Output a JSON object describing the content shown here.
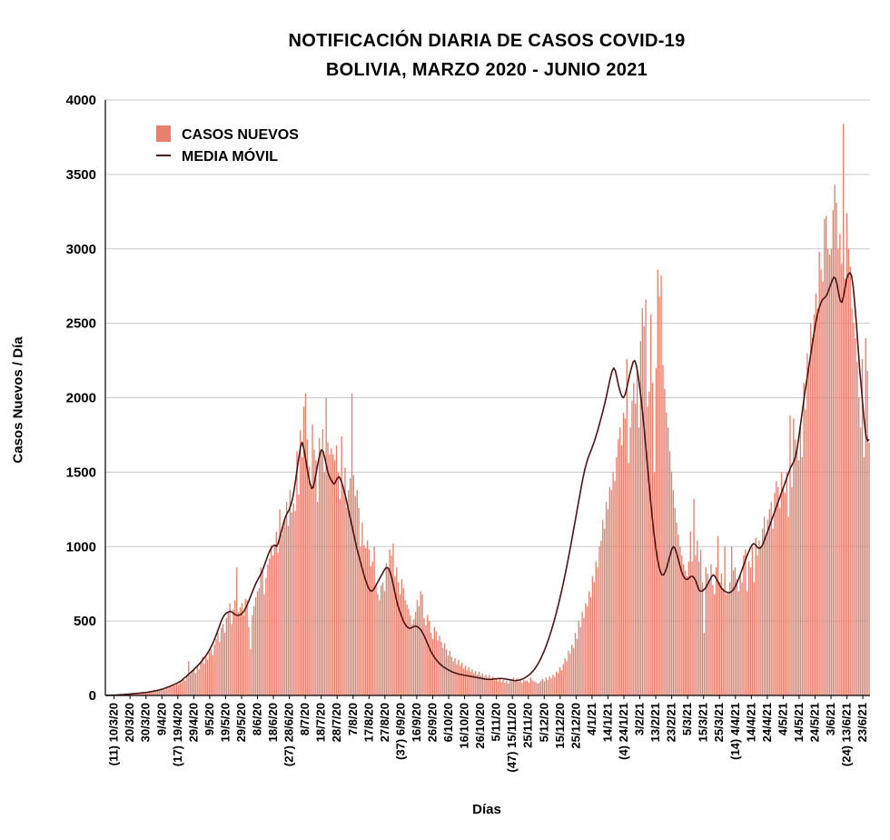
{
  "chart_data": {
    "type": "bar",
    "title": "NOTIFICACIÓN DIARIA DE CASOS COVID-19",
    "subtitle": "BOLIVIA,  MARZO 2020 - JUNIO 2021",
    "xlabel": "Días",
    "ylabel": "Casos Nuevos / Día",
    "ylim": [
      0,
      4000
    ],
    "yticks": [
      0,
      500,
      1000,
      1500,
      2000,
      2500,
      3000,
      3500,
      4000
    ],
    "grid": "horizontal",
    "legend_position": "top-left",
    "x_start": "10/3/20",
    "x_end": "26/6/21",
    "xticks": [
      "(11) 10/3/20",
      "20/3/20",
      "30/3/20",
      "9/4/20",
      "(17) 19/4/20",
      "29/4/20",
      "9/5/20",
      "19/5/20",
      "29/5/20",
      "8/6/20",
      "18/6/20",
      "(27) 28/6/20",
      "8/7/20",
      "18/7/20",
      "28/7/20",
      "7/8/20",
      "17/8/20",
      "27/8/20",
      "(37) 6/9/20",
      "16/9/20",
      "26/9/20",
      "6/10/20",
      "16/10/20",
      "26/10/20",
      "5/11/20",
      "(47) 15/11/20",
      "25/11/20",
      "5/12/20",
      "15/12/20",
      "25/12/20",
      "4/1/21",
      "14/1/21",
      "(4) 24/1/21",
      "3/2/21",
      "13/2/21",
      "23/2/21",
      "5/3/21",
      "15/3/21",
      "25/3/21",
      "(14) 4/4/21",
      "14/4/21",
      "24/4/21",
      "4/5/21",
      "14/5/21",
      "24/5/21",
      "3/6/21",
      "(24) 13/6/21",
      "23/6/21"
    ],
    "series": [
      {
        "name": "CASOS NUEVOS",
        "type": "bar",
        "color": "#e8806f",
        "values": [
          1,
          0,
          1,
          2,
          3,
          2,
          4,
          3,
          5,
          6,
          5,
          8,
          7,
          10,
          12,
          9,
          14,
          11,
          15,
          17,
          13,
          20,
          18,
          24,
          16,
          22,
          30,
          25,
          34,
          28,
          36,
          31,
          40,
          45,
          38,
          52,
          47,
          60,
          55,
          70,
          65,
          80,
          74,
          95,
          88,
          110,
          100,
          125,
          230,
          140,
          160,
          185,
          150,
          200,
          175,
          230,
          260,
          215,
          270,
          240,
          290,
          310,
          270,
          340,
          380,
          420,
          360,
          455,
          480,
          420,
          520,
          560,
          620,
          480,
          580,
          640,
          860,
          560,
          590,
          620,
          540,
          650,
          640,
          460,
          310,
          540,
          600,
          660,
          700,
          720,
          860,
          840,
          680,
          790,
          880,
          920,
          1010,
          940,
          1000,
          1100,
          960,
          1250,
          1080,
          1150,
          1200,
          1300,
          1140,
          1380,
          1230,
          1290,
          1240,
          1640,
          1350,
          1780,
          1600,
          1940,
          2030,
          1720,
          1540,
          1420,
          1820,
          1650,
          1580,
          1300,
          1730,
          1640,
          1790,
          1500,
          2000,
          1700,
          1620,
          1660,
          1620,
          1580,
          1680,
          1500,
          1320,
          1740,
          1400,
          1530,
          1260,
          1380,
          1460,
          2030,
          1480,
          1340,
          1380,
          1260,
          1000,
          1160,
          1010,
          990,
          1040,
          980,
          870,
          900,
          1000,
          750,
          680,
          640,
          740,
          760,
          700,
          890,
          860,
          980,
          940,
          1020,
          800,
          860,
          760,
          680,
          780,
          720,
          640,
          610,
          580,
          540,
          480,
          510,
          560,
          640,
          600,
          700,
          680,
          520,
          470,
          540,
          500,
          420,
          380,
          460,
          430,
          370,
          400,
          360,
          320,
          350,
          310,
          270,
          300,
          260,
          230,
          250,
          210,
          240,
          200,
          220,
          180,
          200,
          170,
          190,
          160,
          175,
          150,
          165,
          140,
          160,
          135,
          150,
          125,
          140,
          120,
          135,
          110,
          125,
          100,
          115,
          95,
          110,
          90,
          105,
          85,
          100,
          80,
          110,
          95,
          120,
          100,
          115,
          90,
          110,
          85,
          105,
          95,
          100,
          85,
          120,
          100,
          95,
          90,
          80,
          85,
          100,
          110,
          95,
          120,
          105,
          130,
          115,
          140,
          125,
          160,
          150,
          190,
          170,
          210,
          250,
          230,
          300,
          280,
          340,
          320,
          420,
          380,
          500,
          460,
          560,
          520,
          620,
          600,
          700,
          660,
          800,
          760,
          900,
          860,
          1000,
          1040,
          1180,
          1120,
          1300,
          1250,
          1400,
          1380,
          1500,
          1440,
          1600,
          1720,
          1800,
          1680,
          1900,
          1860,
          2260,
          1560,
          1800,
          1980,
          2100,
          1960,
          2200,
          1800,
          2380,
          2600,
          2480,
          2660,
          1940,
          2040,
          2560,
          2100,
          1500,
          2200,
          2860,
          2680,
          2820,
          2220,
          2060,
          1900,
          1800,
          1640,
          1500,
          1380,
          1260,
          1160,
          1080,
          1000,
          940,
          880,
          840,
          800,
          900,
          1100,
          900,
          1320,
          940,
          1040,
          900,
          980,
          760,
          420,
          860,
          820,
          760,
          880,
          740,
          680,
          860,
          1070,
          760,
          820,
          720,
          1000,
          680,
          700,
          760,
          1000,
          840,
          860,
          780,
          700,
          820,
          760,
          940,
          980,
          700,
          900,
          860,
          1000,
          760,
          1060,
          940,
          1040,
          1000,
          1120,
          1200,
          1060,
          1180,
          1250,
          1300,
          1120,
          1360,
          1440,
          1400,
          1260,
          1500,
          1400,
          1360,
          1500,
          1200,
          1880,
          1400,
          1860,
          1720,
          1640,
          1580,
          1800,
          1600,
          2100,
          1920,
          2300,
          2200,
          2500,
          2400,
          2560,
          2700,
          2600,
          2980,
          2860,
          2780,
          3200,
          3220,
          3000,
          2960,
          3000,
          3260,
          3430,
          3310,
          3000,
          3100,
          2900,
          3840,
          2800,
          3240,
          3000,
          2880,
          2600,
          2500,
          2400,
          2240,
          2000,
          1800,
          2260,
          1600,
          2400,
          2180,
          1700
        ]
      },
      {
        "name": "MEDIA MÓVIL",
        "type": "line",
        "color": "#4a1515",
        "values": [
          1,
          1,
          1,
          2,
          2,
          2,
          3,
          3,
          4,
          5,
          5,
          6,
          7,
          8,
          9,
          10,
          11,
          12,
          13,
          14,
          15,
          16,
          17,
          18,
          19,
          20,
          22,
          24,
          26,
          28,
          30,
          32,
          34,
          37,
          40,
          43,
          46,
          50,
          54,
          58,
          62,
          67,
          72,
          77,
          82,
          88,
          94,
          100,
          112,
          120,
          128,
          140,
          148,
          158,
          168,
          178,
          190,
          200,
          212,
          224,
          238,
          252,
          266,
          282,
          300,
          320,
          342,
          366,
          392,
          420,
          450,
          480,
          510,
          530,
          545,
          555,
          560,
          565,
          562,
          555,
          545,
          540,
          538,
          540,
          545,
          555,
          570,
          590,
          615,
          640,
          668,
          695,
          722,
          748,
          770,
          790,
          810,
          830,
          860,
          890,
          920,
          950,
          975,
          995,
          1005,
          1010,
          1000,
          1020,
          1060,
          1100,
          1140,
          1180,
          1210,
          1230,
          1250,
          1280,
          1320,
          1380,
          1450,
          1530,
          1600,
          1670,
          1700,
          1660,
          1600,
          1530,
          1470,
          1420,
          1390,
          1400,
          1450,
          1510,
          1570,
          1620,
          1650,
          1640,
          1600,
          1550,
          1500,
          1470,
          1450,
          1430,
          1420,
          1440,
          1460,
          1470,
          1450,
          1420,
          1380,
          1340,
          1290,
          1240,
          1190,
          1140,
          1090,
          1040,
          990,
          950,
          910,
          870,
          830,
          790,
          760,
          730,
          710,
          700,
          705,
          720,
          740,
          760,
          780,
          800,
          820,
          840,
          855,
          860,
          850,
          820,
          780,
          730,
          680,
          630,
          590,
          560,
          530,
          500,
          480,
          465,
          455,
          450,
          455,
          460,
          465,
          465,
          460,
          450,
          440,
          420,
          400,
          375,
          350,
          325,
          300,
          280,
          262,
          246,
          232,
          220,
          210,
          200,
          192,
          185,
          178,
          172,
          166,
          160,
          156,
          152,
          148,
          145,
          142,
          140,
          138,
          136,
          134,
          132,
          130,
          128,
          126,
          124,
          122,
          120,
          118,
          116,
          114,
          112,
          110,
          109,
          108,
          108,
          109,
          110,
          111,
          112,
          113,
          114,
          114,
          113,
          112,
          110,
          108,
          106,
          104,
          102,
          100,
          100,
          101,
          103,
          106,
          110,
          115,
          121,
          128,
          136,
          145,
          156,
          168,
          182,
          198,
          216,
          236,
          258,
          282,
          308,
          336,
          366,
          398,
          432,
          468,
          506,
          546,
          588,
          632,
          678,
          726,
          776,
          828,
          882,
          938,
          996,
          1055,
          1115,
          1175,
          1235,
          1295,
          1355,
          1415,
          1470,
          1520,
          1560,
          1595,
          1625,
          1650,
          1680,
          1710,
          1745,
          1780,
          1820,
          1860,
          1900,
          1945,
          1990,
          2040,
          2090,
          2140,
          2180,
          2200,
          2180,
          2130,
          2080,
          2040,
          2010,
          2000,
          2020,
          2060,
          2110,
          2160,
          2200,
          2240,
          2250,
          2220,
          2160,
          2080,
          1990,
          1890,
          1780,
          1660,
          1540,
          1420,
          1300,
          1190,
          1090,
          1000,
          930,
          870,
          830,
          810,
          810,
          830,
          860,
          900,
          940,
          980,
          1000,
          990,
          960,
          920,
          880,
          840,
          810,
          790,
          780,
          780,
          790,
          800,
          800,
          790,
          770,
          740,
          710,
          700,
          700,
          710,
          720,
          740,
          760,
          780,
          800,
          810,
          800,
          780,
          760,
          740,
          720,
          710,
          700,
          695,
          690,
          690,
          695,
          705,
          720,
          740,
          765,
          790,
          820,
          850,
          880,
          910,
          940,
          965,
          990,
          1010,
          1020,
          1015,
          1000,
          990,
          990,
          1000,
          1020,
          1050,
          1080,
          1110,
          1140,
          1170,
          1200,
          1230,
          1260,
          1290,
          1320,
          1350,
          1380,
          1410,
          1440,
          1470,
          1500,
          1530,
          1550,
          1570,
          1600,
          1650,
          1720,
          1800,
          1880,
          1960,
          2040,
          2110,
          2180,
          2250,
          2320,
          2390,
          2460,
          2520,
          2570,
          2610,
          2640,
          2660,
          2670,
          2680,
          2700,
          2730,
          2760,
          2790,
          2810,
          2800,
          2760,
          2700,
          2650,
          2640,
          2680,
          2740,
          2800,
          2830,
          2840,
          2820,
          2750,
          2630,
          2500,
          2350,
          2200,
          2080,
          1950,
          1830,
          1740,
          1710,
          1720
        ]
      }
    ]
  }
}
